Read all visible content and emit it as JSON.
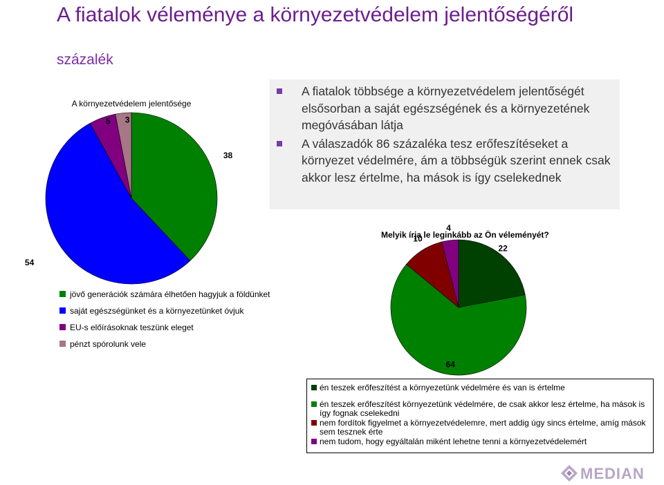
{
  "title": "A fiatalok véleménye a környezetvédelem jelentőségéről",
  "subtitle": "százalék",
  "bullets": [
    "A fiatalok többsége a környezetvédelem jelentőségét elsősorban a saját egészségének és a környezetének megóvásában látja",
    "A válaszadók 86 százaléka tesz erőfeszítéseket a környezet védelmére, ám a többségük szerint ennek csak akkor lesz értelme, ha mások is így cselekednek"
  ],
  "chart_data": [
    {
      "type": "pie",
      "title": "A környezetvédelem jelentősége",
      "start_angle_deg": 0,
      "direction": "clockwise",
      "legend_position": "bottom-left",
      "slices": [
        {
          "label": "jövő generációk számára élhetően hagyjuk a földünket",
          "value": 38,
          "color": "#008000"
        },
        {
          "label": "saját egészségünket és a környezetünket óvjuk",
          "value": 54,
          "color": "#0000ff"
        },
        {
          "label": "EU-s előírásoknak teszünk eleget",
          "value": 5,
          "color": "#800080"
        },
        {
          "label": "pénzt spórolunk vele",
          "value": 3,
          "color": "#a87686"
        }
      ]
    },
    {
      "type": "pie",
      "title": "Melyik írja le leginkább az Ön véleményét?",
      "start_angle_deg": 0,
      "direction": "clockwise",
      "legend_position": "bottom",
      "slices": [
        {
          "label": "én teszek erőfeszítést a környezetünk védelmére és van is értelme",
          "value": 22,
          "color": "#004000"
        },
        {
          "label": "én teszek erőfeszítést környezetünk védelmére, de csak akkor lesz értelme, ha mások is így fognak cselekedni",
          "value": 64,
          "color": "#008000"
        },
        {
          "label": "nem fordítok figyelmet a környezetvédelemre, mert addig úgy sincs értelme, amíg mások sem tesznek érte",
          "value": 10,
          "color": "#800000"
        },
        {
          "label": "nem tudom, hogy egyáltalán miként lehetne tenni a környezetvédelemért",
          "value": 4,
          "color": "#800080"
        }
      ]
    }
  ],
  "logo": {
    "text": "MEDIAN"
  }
}
